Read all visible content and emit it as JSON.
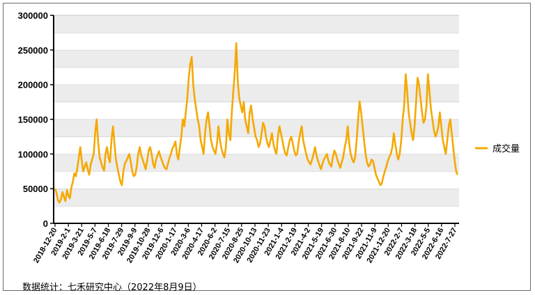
{
  "chart_data": {
    "type": "line",
    "ylim": [
      0,
      300000
    ],
    "y_ticks": [
      "0",
      "50000",
      "100000",
      "150000",
      "200000",
      "250000",
      "300000"
    ],
    "x_tick_labels": [
      "2018-12-20",
      "2019-2-1",
      "2019-3-21",
      "2019-5-7",
      "2019-6-18",
      "2019-7-29",
      "2019-9-9",
      "2019-10-28",
      "2019-12-6",
      "2020-1-17",
      "2020-3-6",
      "2020-4-17",
      "2020-6-2",
      "2020-7-15",
      "2020-8-25",
      "2020-10-13",
      "2020-11-23",
      "2021-1-4",
      "2021-2-19",
      "2021-4-2",
      "2021-5-19",
      "2021-6-30",
      "2021-8-10",
      "2021-9-22",
      "2021-11-9",
      "2021-12-20",
      "2022-2-7",
      "2022-3-18",
      "2022-5-5",
      "2022-6-16",
      "2022-7-27"
    ],
    "grid": "horizontal bands",
    "legend_position": "right",
    "color": "#F5A800",
    "series": [
      {
        "name": "成交量",
        "values": [
          50000,
          44000,
          33000,
          30000,
          35000,
          45000,
          38000,
          32000,
          48000,
          40000,
          36000,
          52000,
          60000,
          72000,
          68000,
          80000,
          95000,
          110000,
          90000,
          75000,
          82000,
          88000,
          78000,
          70000,
          85000,
          92000,
          100000,
          130000,
          150000,
          118000,
          95000,
          88000,
          80000,
          76000,
          100000,
          110000,
          95000,
          88000,
          120000,
          140000,
          115000,
          92000,
          80000,
          70000,
          60000,
          55000,
          75000,
          86000,
          90000,
          95000,
          100000,
          88000,
          75000,
          68000,
          70000,
          82000,
          100000,
          110000,
          98000,
          92000,
          85000,
          78000,
          90000,
          105000,
          110000,
          100000,
          86000,
          80000,
          92000,
          98000,
          104000,
          96000,
          90000,
          84000,
          80000,
          78000,
          86000,
          94000,
          100000,
          108000,
          112000,
          118000,
          100000,
          92000,
          110000,
          125000,
          150000,
          140000,
          160000,
          180000,
          210000,
          230000,
          240000,
          200000,
          180000,
          165000,
          150000,
          140000,
          120000,
          110000,
          100000,
          130000,
          150000,
          160000,
          140000,
          120000,
          110000,
          105000,
          100000,
          115000,
          140000,
          120000,
          108000,
          100000,
          95000,
          110000,
          150000,
          130000,
          120000,
          160000,
          190000,
          220000,
          260000,
          205000,
          180000,
          170000,
          160000,
          175000,
          150000,
          140000,
          130000,
          160000,
          170000,
          150000,
          138000,
          125000,
          120000,
          110000,
          115000,
          130000,
          145000,
          140000,
          125000,
          115000,
          110000,
          120000,
          130000,
          115000,
          105000,
          100000,
          125000,
          140000,
          130000,
          120000,
          108000,
          100000,
          98000,
          110000,
          120000,
          125000,
          115000,
          105000,
          98000,
          100000,
          118000,
          130000,
          140000,
          120000,
          110000,
          100000,
          92000,
          88000,
          85000,
          92000,
          100000,
          110000,
          98000,
          90000,
          84000,
          78000,
          86000,
          92000,
          96000,
          100000,
          90000,
          85000,
          82000,
          95000,
          105000,
          100000,
          92000,
          86000,
          80000,
          88000,
          96000,
          110000,
          120000,
          140000,
          115000,
          100000,
          92000,
          88000,
          95000,
          120000,
          150000,
          176000,
          160000,
          140000,
          120000,
          100000,
          88000,
          82000,
          85000,
          92000,
          90000,
          80000,
          70000,
          65000,
          60000,
          55000,
          58000,
          68000,
          75000,
          82000,
          90000,
          96000,
          100000,
          110000,
          130000,
          115000,
          100000,
          92000,
          100000,
          120000,
          150000,
          170000,
          215000,
          190000,
          160000,
          145000,
          130000,
          120000,
          140000,
          175000,
          210000,
          200000,
          180000,
          160000,
          145000,
          150000,
          170000,
          215000,
          190000,
          165000,
          150000,
          135000,
          125000,
          130000,
          140000,
          160000,
          140000,
          120000,
          110000,
          100000,
          120000,
          140000,
          150000,
          130000,
          110000,
          90000,
          75000,
          70000
        ]
      }
    ]
  },
  "legend": {
    "label": "成交量"
  },
  "source": "数据统计：七禾研究中心（2022年8月9日）"
}
